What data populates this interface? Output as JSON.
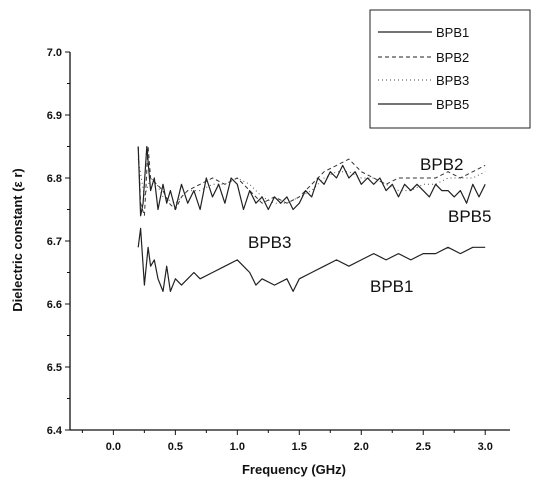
{
  "chart_data": {
    "type": "line",
    "xlabel": "Frequency (GHz)",
    "ylabel": "Dielectric constant (ε r)",
    "xlim": [
      -0.35,
      3.2
    ],
    "ylim": [
      6.4,
      7.0
    ],
    "xticks": [
      "0.0",
      "0.5",
      "1.0",
      "1.5",
      "2.0",
      "2.5",
      "3.0"
    ],
    "yticks": [
      "6.4",
      "6.5",
      "6.6",
      "6.7",
      "6.8",
      "6.9",
      "7.0"
    ],
    "grid": false,
    "legend_position": "top-right",
    "legend": [
      "BPB1",
      "BPB2",
      "BPB3",
      "BPB5"
    ],
    "annotations": [
      "BPB2",
      "BPB5",
      "BPB3",
      "BPB1"
    ],
    "series": [
      {
        "name": "BPB1",
        "style": "solid",
        "x": [
          0.2,
          0.22,
          0.25,
          0.28,
          0.3,
          0.33,
          0.36,
          0.4,
          0.43,
          0.46,
          0.5,
          0.55,
          0.6,
          0.65,
          0.7,
          0.8,
          0.9,
          1.0,
          1.05,
          1.1,
          1.15,
          1.2,
          1.3,
          1.4,
          1.45,
          1.5,
          1.6,
          1.7,
          1.8,
          1.9,
          2.0,
          2.1,
          2.2,
          2.3,
          2.4,
          2.5,
          2.6,
          2.7,
          2.8,
          2.9,
          3.0
        ],
        "values": [
          6.69,
          6.72,
          6.63,
          6.69,
          6.66,
          6.67,
          6.64,
          6.62,
          6.66,
          6.62,
          6.64,
          6.63,
          6.64,
          6.65,
          6.64,
          6.65,
          6.66,
          6.67,
          6.66,
          6.65,
          6.63,
          6.64,
          6.63,
          6.64,
          6.62,
          6.64,
          6.65,
          6.66,
          6.67,
          6.66,
          6.67,
          6.68,
          6.67,
          6.68,
          6.67,
          6.68,
          6.68,
          6.69,
          6.68,
          6.69,
          6.69
        ]
      },
      {
        "name": "BPB2",
        "style": "dashed",
        "x": [
          0.2,
          0.22,
          0.25,
          0.28,
          0.3,
          0.35,
          0.4,
          0.45,
          0.5,
          0.55,
          0.6,
          0.7,
          0.8,
          0.9,
          1.0,
          1.1,
          1.2,
          1.3,
          1.4,
          1.5,
          1.6,
          1.7,
          1.8,
          1.9,
          2.0,
          2.1,
          2.2,
          2.3,
          2.4,
          2.5,
          2.6,
          2.7,
          2.8,
          2.9,
          3.0
        ],
        "values": [
          6.85,
          6.76,
          6.74,
          6.85,
          6.8,
          6.79,
          6.78,
          6.76,
          6.75,
          6.77,
          6.78,
          6.79,
          6.8,
          6.79,
          6.8,
          6.78,
          6.76,
          6.77,
          6.76,
          6.77,
          6.79,
          6.81,
          6.82,
          6.83,
          6.81,
          6.8,
          6.79,
          6.8,
          6.8,
          6.8,
          6.8,
          6.81,
          6.8,
          6.81,
          6.82
        ]
      },
      {
        "name": "BPB3",
        "style": "dotted",
        "x": [
          0.2,
          0.25,
          0.3,
          0.35,
          0.4,
          0.5,
          0.6,
          0.7,
          0.8,
          0.9,
          1.0,
          1.1,
          1.2,
          1.3,
          1.4,
          1.5,
          1.6,
          1.7,
          1.8,
          1.9,
          2.0,
          2.1,
          2.2,
          2.3,
          2.4,
          2.5,
          2.6,
          2.7,
          2.8,
          2.9,
          3.0
        ],
        "values": [
          6.83,
          6.77,
          6.8,
          6.79,
          6.77,
          6.76,
          6.78,
          6.78,
          6.79,
          6.79,
          6.8,
          6.79,
          6.77,
          6.76,
          6.76,
          6.77,
          6.78,
          6.8,
          6.81,
          6.81,
          6.8,
          6.8,
          6.79,
          6.78,
          6.78,
          6.79,
          6.79,
          6.8,
          6.8,
          6.8,
          6.81
        ]
      },
      {
        "name": "BPB5",
        "style": "solid",
        "x": [
          0.2,
          0.22,
          0.24,
          0.27,
          0.3,
          0.33,
          0.36,
          0.4,
          0.43,
          0.46,
          0.5,
          0.55,
          0.6,
          0.65,
          0.7,
          0.75,
          0.8,
          0.85,
          0.9,
          0.95,
          1.0,
          1.05,
          1.1,
          1.15,
          1.2,
          1.25,
          1.3,
          1.35,
          1.4,
          1.45,
          1.5,
          1.55,
          1.6,
          1.65,
          1.7,
          1.75,
          1.8,
          1.85,
          1.9,
          1.95,
          2.0,
          2.05,
          2.1,
          2.15,
          2.2,
          2.25,
          2.3,
          2.35,
          2.4,
          2.45,
          2.5,
          2.55,
          2.6,
          2.65,
          2.7,
          2.75,
          2.8,
          2.85,
          2.9,
          2.95,
          3.0
        ],
        "values": [
          6.85,
          6.74,
          6.76,
          6.85,
          6.78,
          6.8,
          6.75,
          6.79,
          6.76,
          6.78,
          6.75,
          6.79,
          6.76,
          6.78,
          6.75,
          6.8,
          6.77,
          6.79,
          6.76,
          6.8,
          6.79,
          6.75,
          6.78,
          6.76,
          6.77,
          6.75,
          6.77,
          6.76,
          6.77,
          6.75,
          6.76,
          6.78,
          6.77,
          6.8,
          6.79,
          6.81,
          6.8,
          6.82,
          6.8,
          6.81,
          6.79,
          6.8,
          6.79,
          6.8,
          6.78,
          6.79,
          6.77,
          6.79,
          6.78,
          6.79,
          6.78,
          6.77,
          6.79,
          6.78,
          6.78,
          6.77,
          6.78,
          6.76,
          6.79,
          6.77,
          6.79
        ]
      }
    ]
  }
}
